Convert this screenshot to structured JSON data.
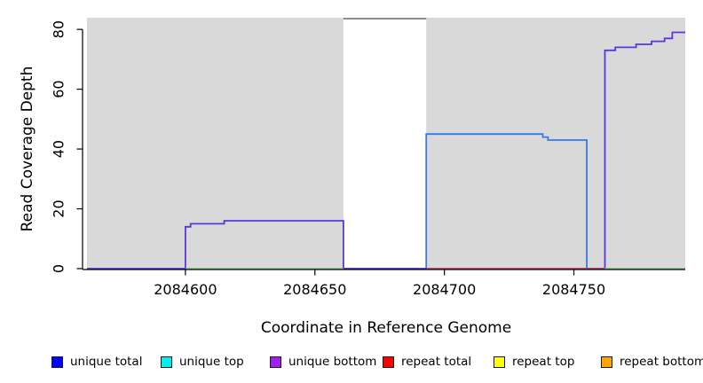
{
  "chart_data": {
    "type": "line",
    "title": "",
    "xlabel": "Coordinate in Reference Genome",
    "ylabel": "Read Coverage Depth",
    "xlim": [
      2084562,
      2084793
    ],
    "ylim": [
      0,
      83.9
    ],
    "x_ticks": [
      2084600,
      2084650,
      2084700,
      2084750
    ],
    "x_tick_labels": [
      "2084600",
      "2084650",
      "2084700",
      "2084750"
    ],
    "y_ticks": [
      0,
      20,
      40,
      60,
      80
    ],
    "y_tick_labels": [
      "0",
      "20",
      "40",
      "60",
      "80"
    ],
    "grid": false,
    "plot_bg": "#d9d9d9",
    "axis_color": "#000000",
    "mask_region": {
      "x0": 2084661,
      "x1": 2084693,
      "top": 83.6,
      "color": "#ffffff",
      "border": "#8c8c8c"
    },
    "series": [
      {
        "name": "unique total line",
        "color": "#3579ec",
        "width": 1.8,
        "segments": [
          [
            [
              2084661,
              0
            ],
            [
              2084693,
              0
            ],
            [
              2084693,
              45
            ],
            [
              2084738,
              45
            ],
            [
              2084738,
              44
            ],
            [
              2084740,
              44
            ],
            [
              2084740,
              43
            ],
            [
              2084755,
              43
            ],
            [
              2084755,
              0
            ],
            [
              2084762,
              0
            ]
          ]
        ]
      },
      {
        "name": "unique bottom line",
        "color": "#5c35e0",
        "width": 1.8,
        "segments": [
          [
            [
              2084562,
              0
            ],
            [
              2084600,
              0
            ],
            [
              2084600,
              14
            ],
            [
              2084602,
              14
            ],
            [
              2084602,
              15
            ],
            [
              2084615,
              15
            ],
            [
              2084615,
              16
            ],
            [
              2084661,
              16
            ],
            [
              2084661,
              0
            ],
            [
              2084762,
              0
            ],
            [
              2084762,
              73
            ],
            [
              2084766,
              73
            ],
            [
              2084766,
              74
            ],
            [
              2084774,
              74
            ],
            [
              2084774,
              75
            ],
            [
              2084780,
              75
            ],
            [
              2084780,
              76
            ],
            [
              2084785,
              76
            ],
            [
              2084785,
              77
            ],
            [
              2084788,
              77
            ],
            [
              2084788,
              79
            ],
            [
              2084793,
              79
            ]
          ]
        ]
      },
      {
        "name": "green baseline",
        "color": "#74c474",
        "width": 1.4,
        "segments": [
          [
            [
              2084600,
              0
            ],
            [
              2084661,
              0
            ]
          ],
          [
            [
              2084762,
              0
            ],
            [
              2084793,
              0
            ]
          ]
        ]
      },
      {
        "name": "repeat total line",
        "color": "#cc4a5c",
        "width": 1.4,
        "segments": [
          [
            [
              2084693,
              0
            ],
            [
              2084762,
              0
            ]
          ]
        ]
      }
    ],
    "legend": {
      "position": "bottom",
      "entries": [
        {
          "label": "unique total",
          "color": "#0000ff"
        },
        {
          "label": "unique top",
          "color": "#00eeee"
        },
        {
          "label": "unique bottom",
          "color": "#a020f0"
        },
        {
          "label": "repeat total",
          "color": "#ff0000"
        },
        {
          "label": "repeat top",
          "color": "#ffff00"
        },
        {
          "label": "repeat bottom",
          "color": "#ffa500"
        }
      ]
    }
  }
}
